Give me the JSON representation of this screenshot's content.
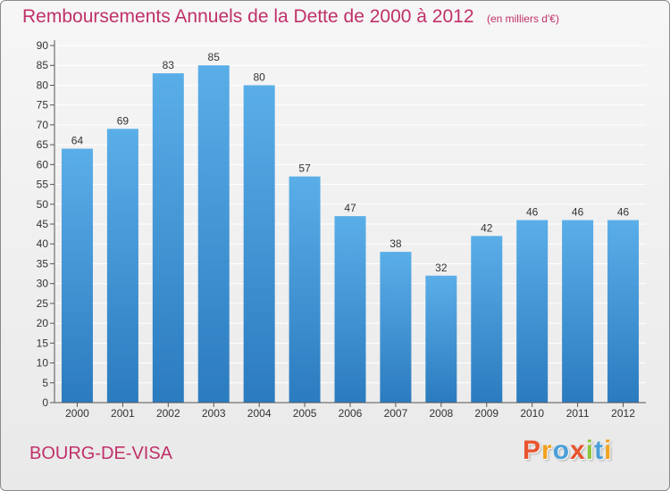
{
  "header": {
    "title": "Remboursements Annuels de la Dette de 2000 à 2012",
    "unit": "(en milliers d'€)"
  },
  "footer": {
    "commune": "BOURG-DE-VISA",
    "logo_text": "Proxiti",
    "logo_colors": [
      "#e8542f",
      "#f2a11f",
      "#4a9fd8",
      "#e8542f",
      "#8cc63f",
      "#4a9fd8",
      "#f2a11f"
    ]
  },
  "colors": {
    "accent": "#c0306a",
    "bar_top": "#5aaee8",
    "bar_bottom": "#2b7bbf",
    "grid": "#ffffff",
    "axis": "#555555"
  },
  "chart_data": {
    "type": "bar",
    "title": "Remboursements Annuels de la Dette de 2000 à 2012",
    "subtitle": "(en milliers d'€)",
    "xlabel": "",
    "ylabel": "",
    "categories": [
      "2000",
      "2001",
      "2002",
      "2003",
      "2004",
      "2005",
      "2006",
      "2007",
      "2008",
      "2009",
      "2010",
      "2011",
      "2012"
    ],
    "values": [
      64,
      69,
      83,
      85,
      80,
      57,
      47,
      38,
      32,
      42,
      46,
      46,
      46
    ],
    "ylim": [
      0,
      90
    ],
    "yticks": [
      0,
      5,
      10,
      15,
      20,
      25,
      30,
      35,
      40,
      45,
      50,
      55,
      60,
      65,
      70,
      75,
      80,
      85,
      90
    ],
    "grid": true,
    "data_labels": true
  }
}
